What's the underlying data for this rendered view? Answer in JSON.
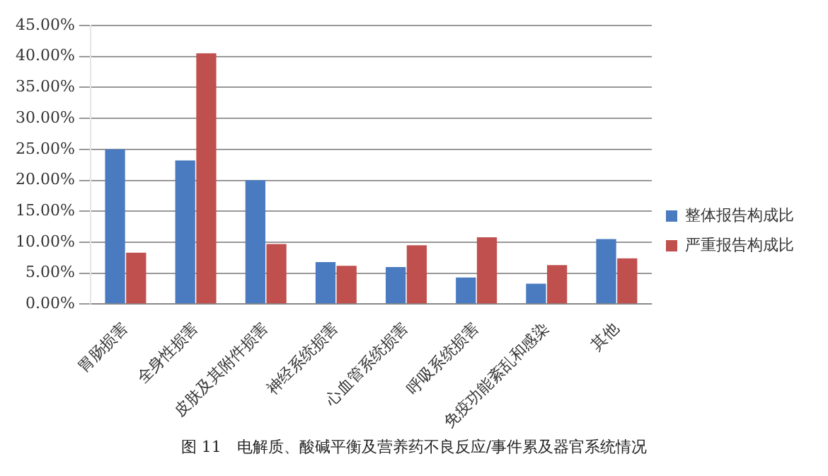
{
  "chart_data": {
    "type": "bar",
    "categories": [
      "胃肠损害",
      "全身性损害",
      "皮肤及其附件损害",
      "神经系统损害",
      "心血管系统损害",
      "呼吸系统损害",
      "免疫功能紊乱和感染",
      "其他"
    ],
    "series": [
      {
        "name": "整体报告构成比",
        "color": "#4a7bc0",
        "values": [
          25,
          23.2,
          20,
          6.8,
          6,
          4.3,
          3.3,
          10.5
        ]
      },
      {
        "name": "严重报告构成比",
        "color": "#c0504d",
        "values": [
          8.3,
          40.5,
          9.7,
          6.2,
          9.5,
          10.8,
          6.3,
          7.4
        ]
      }
    ],
    "ylim": [
      0,
      45
    ],
    "yticks": [
      {
        "value": 0,
        "label": "0.00%"
      },
      {
        "value": 5,
        "label": "5.00%"
      },
      {
        "value": 10,
        "label": "10.00%"
      },
      {
        "value": 15,
        "label": "15.00%"
      },
      {
        "value": 20,
        "label": "20.00%"
      },
      {
        "value": 25,
        "label": "25.00%"
      },
      {
        "value": 30,
        "label": "30.00%"
      },
      {
        "value": 35,
        "label": "35.00%"
      },
      {
        "value": 40,
        "label": "40.00%"
      },
      {
        "value": 45,
        "label": "45.00%"
      }
    ],
    "grid": "y",
    "legend": "right",
    "annotations": [
      "图 11　电解质、酸碱平衡及营养药不良反应/事件累及器官系统情况"
    ]
  }
}
